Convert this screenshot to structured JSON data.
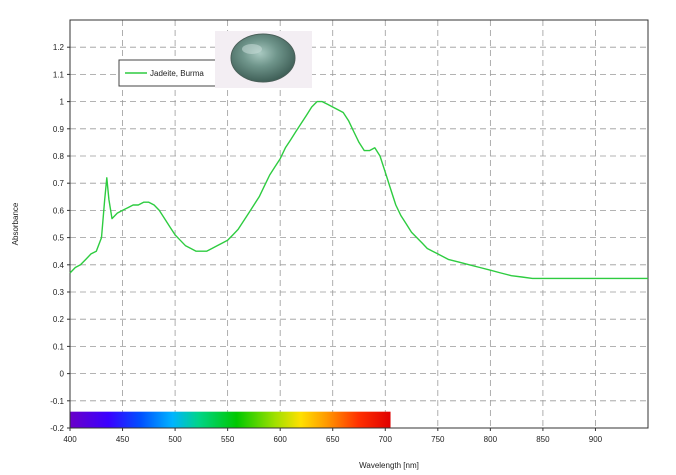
{
  "chart_data": {
    "type": "line",
    "title": "",
    "xlabel": "Wavelength [nm]",
    "ylabel": "Absorbance",
    "xlim": [
      400,
      950
    ],
    "ylim": [
      -0.2,
      1.3
    ],
    "x_ticks": [
      400,
      450,
      500,
      550,
      600,
      650,
      700,
      750,
      800,
      850,
      900
    ],
    "y_ticks": [
      -0.2,
      -0.1,
      0,
      0.1,
      0.2,
      0.3,
      0.4,
      0.5,
      0.6,
      0.7,
      0.8,
      0.9,
      1,
      1.1,
      1.2
    ],
    "grid": true,
    "grid_style": "dashed",
    "legend_position": "top-left",
    "visible_spectrum_bar": {
      "x_start": 400,
      "x_end": 705,
      "y_top": -0.14,
      "y_bottom": -0.2
    },
    "series": [
      {
        "name": "Jadeite, Burma",
        "color": "#2ecc40",
        "x": [
          400,
          405,
          410,
          415,
          420,
          425,
          430,
          433,
          435,
          437,
          440,
          445,
          450,
          455,
          460,
          465,
          470,
          475,
          480,
          485,
          490,
          495,
          500,
          505,
          510,
          515,
          520,
          525,
          530,
          535,
          540,
          545,
          550,
          555,
          560,
          565,
          570,
          575,
          580,
          585,
          590,
          595,
          600,
          605,
          610,
          615,
          620,
          625,
          630,
          635,
          640,
          645,
          650,
          655,
          660,
          665,
          670,
          675,
          680,
          685,
          690,
          695,
          700,
          705,
          710,
          715,
          720,
          725,
          730,
          735,
          740,
          745,
          750,
          760,
          770,
          780,
          790,
          800,
          810,
          820,
          830,
          840,
          850,
          860,
          870,
          880,
          890,
          900,
          920,
          950
        ],
        "y": [
          0.37,
          0.39,
          0.4,
          0.42,
          0.44,
          0.45,
          0.5,
          0.64,
          0.72,
          0.64,
          0.57,
          0.59,
          0.6,
          0.61,
          0.62,
          0.62,
          0.63,
          0.63,
          0.62,
          0.6,
          0.57,
          0.54,
          0.51,
          0.49,
          0.47,
          0.46,
          0.45,
          0.45,
          0.45,
          0.46,
          0.47,
          0.48,
          0.49,
          0.51,
          0.53,
          0.56,
          0.59,
          0.62,
          0.65,
          0.69,
          0.73,
          0.76,
          0.79,
          0.83,
          0.86,
          0.89,
          0.92,
          0.95,
          0.98,
          1.0,
          1.0,
          0.99,
          0.98,
          0.97,
          0.96,
          0.93,
          0.89,
          0.85,
          0.82,
          0.82,
          0.83,
          0.8,
          0.74,
          0.68,
          0.62,
          0.58,
          0.55,
          0.52,
          0.5,
          0.48,
          0.46,
          0.45,
          0.44,
          0.42,
          0.41,
          0.4,
          0.39,
          0.38,
          0.37,
          0.36,
          0.355,
          0.35,
          0.35,
          0.35,
          0.35,
          0.35,
          0.35,
          0.35,
          0.35,
          0.35
        ]
      }
    ]
  }
}
